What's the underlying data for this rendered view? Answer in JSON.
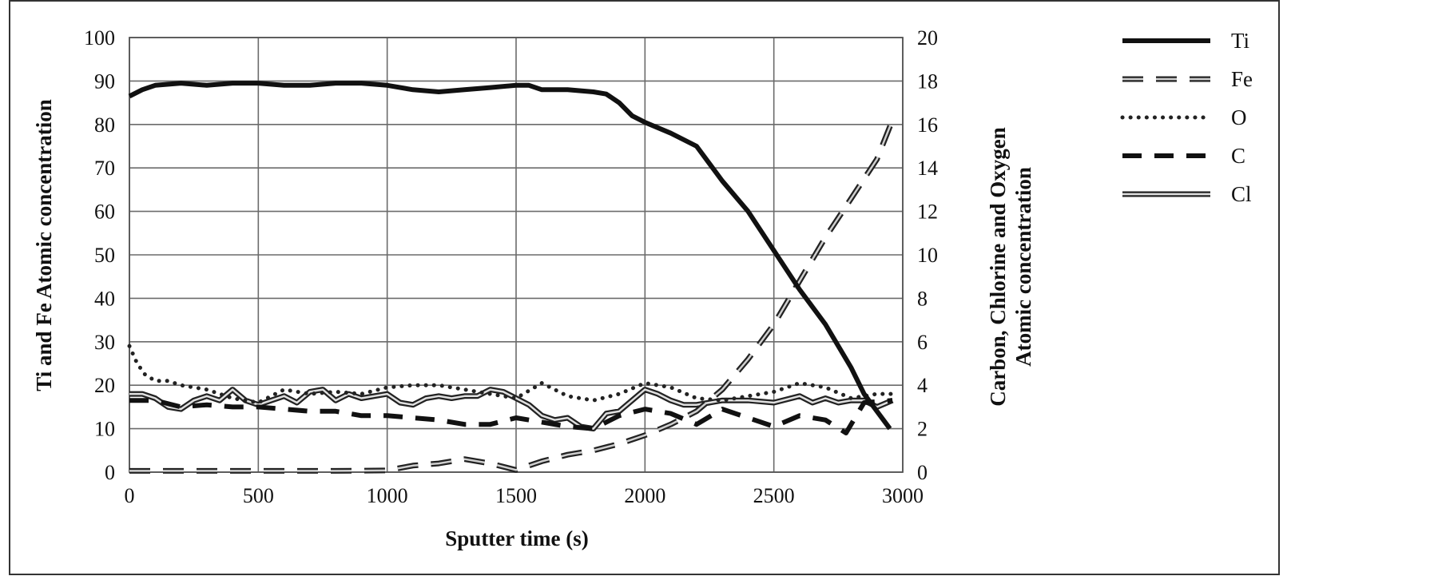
{
  "chart_data": {
    "type": "line",
    "xlabel": "Sputter time (s)",
    "ylabel_left": "Ti and Fe Atomic concentration",
    "ylabel_right_line1": "Carbon, Chlorine and Oxygen",
    "ylabel_right_line2": "Atomic concentration",
    "xlim": [
      0,
      3000
    ],
    "ylim_left": [
      0,
      100
    ],
    "ylim_right": [
      0,
      20
    ],
    "x_ticks": [
      "0",
      "500",
      "1000",
      "1500",
      "2000",
      "2500",
      "3000"
    ],
    "y_left_ticks": [
      "0",
      "10",
      "20",
      "30",
      "40",
      "50",
      "60",
      "70",
      "80",
      "90",
      "100"
    ],
    "y_right_ticks": [
      "0",
      "2",
      "4",
      "6",
      "8",
      "10",
      "12",
      "14",
      "16",
      "18",
      "20"
    ],
    "grid": true,
    "legend_position": "right",
    "series": [
      {
        "name": "Ti",
        "axis": "left",
        "style": "solid-thick",
        "points": [
          [
            0,
            86.5
          ],
          [
            50,
            88
          ],
          [
            100,
            89
          ],
          [
            200,
            89.5
          ],
          [
            300,
            89
          ],
          [
            400,
            89.5
          ],
          [
            500,
            89.5
          ],
          [
            600,
            89
          ],
          [
            700,
            89
          ],
          [
            800,
            89.5
          ],
          [
            900,
            89.5
          ],
          [
            1000,
            89
          ],
          [
            1100,
            88
          ],
          [
            1200,
            87.5
          ],
          [
            1300,
            88
          ],
          [
            1400,
            88.5
          ],
          [
            1500,
            89
          ],
          [
            1550,
            89
          ],
          [
            1600,
            88
          ],
          [
            1700,
            88
          ],
          [
            1800,
            87.5
          ],
          [
            1850,
            87
          ],
          [
            1900,
            85
          ],
          [
            1950,
            82
          ],
          [
            2000,
            80.5
          ],
          [
            2100,
            78
          ],
          [
            2200,
            75
          ],
          [
            2300,
            67
          ],
          [
            2400,
            60
          ],
          [
            2500,
            51
          ],
          [
            2600,
            42
          ],
          [
            2700,
            34
          ],
          [
            2800,
            24
          ],
          [
            2850,
            18
          ],
          [
            2900,
            14
          ],
          [
            2950,
            10
          ]
        ]
      },
      {
        "name": "Fe",
        "axis": "left",
        "style": "double-dashed",
        "points": [
          [
            0,
            0.3
          ],
          [
            200,
            0.3
          ],
          [
            400,
            0.3
          ],
          [
            600,
            0.3
          ],
          [
            800,
            0.3
          ],
          [
            1000,
            0.4
          ],
          [
            1100,
            1.5
          ],
          [
            1200,
            2
          ],
          [
            1300,
            3
          ],
          [
            1400,
            2
          ],
          [
            1500,
            0.5
          ],
          [
            1600,
            2.5
          ],
          [
            1700,
            4
          ],
          [
            1800,
            5
          ],
          [
            1900,
            6.5
          ],
          [
            2000,
            8.5
          ],
          [
            2100,
            11
          ],
          [
            2200,
            14
          ],
          [
            2300,
            19
          ],
          [
            2400,
            26
          ],
          [
            2500,
            34
          ],
          [
            2600,
            44
          ],
          [
            2700,
            54
          ],
          [
            2800,
            63
          ],
          [
            2900,
            72
          ],
          [
            2960,
            81
          ]
        ]
      },
      {
        "name": "O",
        "axis": "right",
        "style": "dotted",
        "points": [
          [
            0,
            5.8
          ],
          [
            30,
            5
          ],
          [
            60,
            4.5
          ],
          [
            100,
            4.2
          ],
          [
            150,
            4.2
          ],
          [
            200,
            4
          ],
          [
            300,
            3.8
          ],
          [
            400,
            3.4
          ],
          [
            500,
            3.2
          ],
          [
            600,
            3.8
          ],
          [
            700,
            3.6
          ],
          [
            800,
            3.7
          ],
          [
            900,
            3.6
          ],
          [
            1000,
            3.9
          ],
          [
            1100,
            4
          ],
          [
            1200,
            4
          ],
          [
            1300,
            3.8
          ],
          [
            1400,
            3.6
          ],
          [
            1500,
            3.4
          ],
          [
            1600,
            4.1
          ],
          [
            1700,
            3.5
          ],
          [
            1800,
            3.3
          ],
          [
            1900,
            3.6
          ],
          [
            2000,
            4.1
          ],
          [
            2100,
            3.9
          ],
          [
            2200,
            3.4
          ],
          [
            2300,
            3.3
          ],
          [
            2400,
            3.5
          ],
          [
            2500,
            3.7
          ],
          [
            2600,
            4.1
          ],
          [
            2700,
            3.9
          ],
          [
            2800,
            3.4
          ],
          [
            2900,
            3.6
          ],
          [
            2960,
            3.6
          ]
        ]
      },
      {
        "name": "C",
        "axis": "right",
        "style": "dashed-thick",
        "points": [
          [
            0,
            3.3
          ],
          [
            100,
            3.3
          ],
          [
            200,
            3
          ],
          [
            300,
            3.1
          ],
          [
            400,
            3
          ],
          [
            500,
            3
          ],
          [
            600,
            2.9
          ],
          [
            700,
            2.8
          ],
          [
            800,
            2.8
          ],
          [
            900,
            2.6
          ],
          [
            1000,
            2.6
          ],
          [
            1100,
            2.5
          ],
          [
            1200,
            2.4
          ],
          [
            1300,
            2.2
          ],
          [
            1400,
            2.2
          ],
          [
            1500,
            2.5
          ],
          [
            1600,
            2.3
          ],
          [
            1700,
            2.1
          ],
          [
            1800,
            2.0
          ],
          [
            1900,
            2.6
          ],
          [
            2000,
            2.9
          ],
          [
            2100,
            2.7
          ],
          [
            2200,
            2.2
          ],
          [
            2300,
            2.9
          ],
          [
            2400,
            2.5
          ],
          [
            2500,
            2.1
          ],
          [
            2600,
            2.6
          ],
          [
            2700,
            2.4
          ],
          [
            2780,
            1.8
          ],
          [
            2850,
            3.2
          ],
          [
            2960,
            3.3
          ]
        ]
      },
      {
        "name": "Cl",
        "axis": "right",
        "style": "double-solid",
        "points": [
          [
            0,
            3.6
          ],
          [
            50,
            3.6
          ],
          [
            100,
            3.4
          ],
          [
            150,
            3.0
          ],
          [
            200,
            2.9
          ],
          [
            250,
            3.3
          ],
          [
            300,
            3.5
          ],
          [
            350,
            3.3
          ],
          [
            400,
            3.8
          ],
          [
            450,
            3.3
          ],
          [
            500,
            3.1
          ],
          [
            550,
            3.3
          ],
          [
            600,
            3.5
          ],
          [
            650,
            3.2
          ],
          [
            700,
            3.7
          ],
          [
            750,
            3.8
          ],
          [
            800,
            3.3
          ],
          [
            850,
            3.6
          ],
          [
            900,
            3.4
          ],
          [
            950,
            3.5
          ],
          [
            1000,
            3.6
          ],
          [
            1050,
            3.2
          ],
          [
            1100,
            3.1
          ],
          [
            1150,
            3.4
          ],
          [
            1200,
            3.5
          ],
          [
            1250,
            3.4
          ],
          [
            1300,
            3.5
          ],
          [
            1350,
            3.5
          ],
          [
            1400,
            3.8
          ],
          [
            1450,
            3.7
          ],
          [
            1500,
            3.4
          ],
          [
            1550,
            3.1
          ],
          [
            1600,
            2.6
          ],
          [
            1650,
            2.4
          ],
          [
            1700,
            2.5
          ],
          [
            1750,
            2.1
          ],
          [
            1800,
            2.0
          ],
          [
            1850,
            2.7
          ],
          [
            1900,
            2.8
          ],
          [
            1950,
            3.3
          ],
          [
            2000,
            3.8
          ],
          [
            2050,
            3.6
          ],
          [
            2100,
            3.3
          ],
          [
            2150,
            3.1
          ],
          [
            2200,
            3.1
          ],
          [
            2250,
            3.2
          ],
          [
            2300,
            3.3
          ],
          [
            2400,
            3.3
          ],
          [
            2500,
            3.2
          ],
          [
            2600,
            3.5
          ],
          [
            2650,
            3.2
          ],
          [
            2700,
            3.4
          ],
          [
            2750,
            3.2
          ],
          [
            2800,
            3.3
          ],
          [
            2850,
            3.3
          ],
          [
            2900,
            3.0
          ],
          [
            2960,
            3.3
          ]
        ]
      }
    ]
  }
}
